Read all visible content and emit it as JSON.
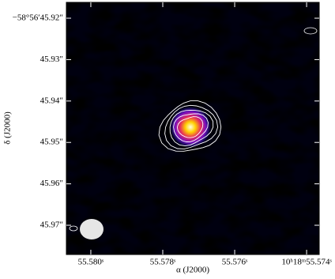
{
  "chart_data": {
    "type": "image",
    "xlabel": "α (J2000)",
    "ylabel": "δ (J2000)",
    "xlim": [
      55.58068,
      55.57365
    ],
    "ylim": [
      45.97706,
      45.91618
    ],
    "xticks": [
      {
        "value": 55.58,
        "label": "55.580ˢ"
      },
      {
        "value": 55.578,
        "label": "55.578ˢ"
      },
      {
        "value": 55.576,
        "label": "55.576ˢ"
      },
      {
        "value": 55.574,
        "label": "10ʰ18ᵐ55.574ˢ"
      }
    ],
    "yticks": [
      {
        "value": 45.92,
        "label": "−58°56′45.92″"
      },
      {
        "value": 45.93,
        "label": "45.93″"
      },
      {
        "value": 45.94,
        "label": "45.94″"
      },
      {
        "value": 45.95,
        "label": "45.95″"
      },
      {
        "value": 45.96,
        "label": "45.96″"
      },
      {
        "value": 45.97,
        "label": "45.97″"
      }
    ],
    "source": {
      "x": 55.57723,
      "y": 45.9463
    }
  }
}
